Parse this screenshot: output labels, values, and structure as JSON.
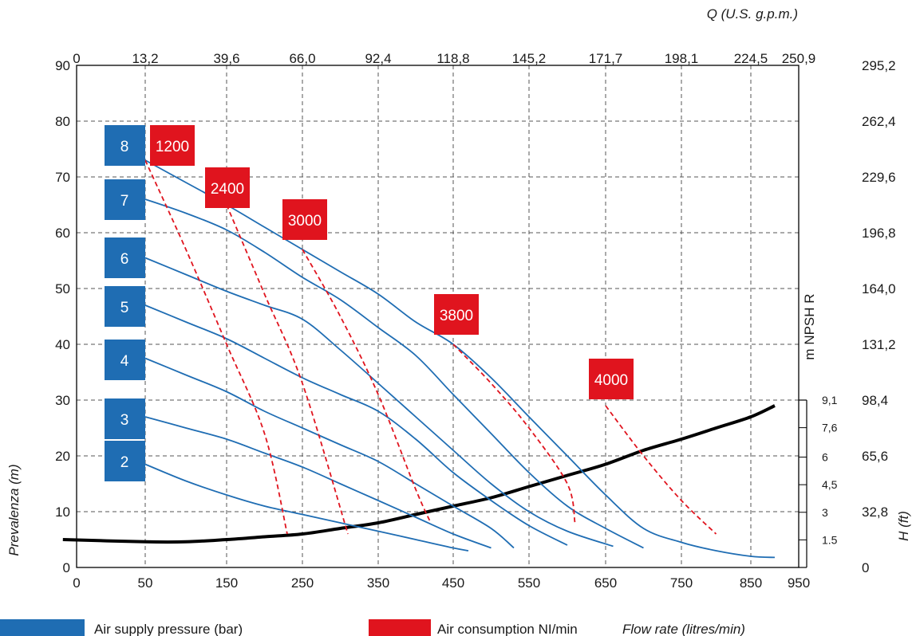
{
  "colors": {
    "pressure": "#1f6db3",
    "consumption": "#e0141e",
    "npsh": "#000000",
    "grid": "#555555"
  },
  "legend": {
    "pressure_label": "Air supply pressure (bar)",
    "consumption_label": "Air consumption NI/min",
    "flow_label": "Flow rate (litres/min)"
  },
  "chart_data": {
    "type": "line",
    "title": "",
    "x_axis": {
      "label": "Flow rate (litres/min)",
      "ticks": [
        "0",
        "50",
        "150",
        "250",
        "350",
        "450",
        "550",
        "650",
        "750",
        "850",
        "950"
      ]
    },
    "x_top_axis": {
      "label": "Q (U.S. g.p.m.)",
      "ticks": [
        "0",
        "13,2",
        "39,6",
        "66,0",
        "92,4",
        "118,8",
        "145,2",
        "171,7",
        "198,1",
        "224,5",
        "250,9"
      ]
    },
    "y_axis": {
      "label": "Prevalenza (m)",
      "range": [
        0,
        90
      ],
      "ticks": [
        "0",
        "10",
        "20",
        "30",
        "40",
        "50",
        "60",
        "70",
        "80",
        "90"
      ]
    },
    "y_right_ft": {
      "label": "H (ft)",
      "ticks": [
        "0",
        "32,8",
        "65,6",
        "98,4",
        "131,2",
        "164,0",
        "196,8",
        "229,6",
        "262,4",
        "295,2"
      ]
    },
    "y_npsh": {
      "label": "m NPSH R",
      "ticks": [
        "1.5",
        "3",
        "4,5",
        "6",
        "7,6",
        "9,1"
      ]
    },
    "grid": true,
    "pressure_series": [
      {
        "name": "8",
        "points": [
          [
            50,
            73
          ],
          [
            100,
            69
          ],
          [
            150,
            65
          ],
          [
            200,
            61
          ],
          [
            250,
            57
          ],
          [
            300,
            53
          ],
          [
            350,
            49
          ],
          [
            400,
            44
          ],
          [
            450,
            40
          ],
          [
            500,
            34
          ],
          [
            550,
            27
          ],
          [
            600,
            20
          ],
          [
            650,
            13
          ],
          [
            700,
            7
          ],
          [
            750,
            4.5
          ],
          [
            800,
            3
          ],
          [
            850,
            2
          ],
          [
            900,
            1.8
          ]
        ]
      },
      {
        "name": "7",
        "points": [
          [
            50,
            66
          ],
          [
            100,
            63.5
          ],
          [
            150,
            60.5
          ],
          [
            200,
            56.5
          ],
          [
            250,
            52
          ],
          [
            300,
            48
          ],
          [
            350,
            43
          ],
          [
            400,
            38
          ],
          [
            450,
            31
          ],
          [
            500,
            24
          ],
          [
            550,
            17
          ],
          [
            600,
            11
          ],
          [
            650,
            7
          ],
          [
            700,
            3.5
          ]
        ]
      },
      {
        "name": "6",
        "points": [
          [
            50,
            55.5
          ],
          [
            100,
            52.5
          ],
          [
            150,
            49.5
          ],
          [
            200,
            47
          ],
          [
            250,
            44.5
          ],
          [
            300,
            39
          ],
          [
            350,
            33
          ],
          [
            400,
            27
          ],
          [
            450,
            21
          ],
          [
            500,
            15
          ],
          [
            550,
            10
          ],
          [
            600,
            6.5
          ],
          [
            660,
            3.8
          ]
        ]
      },
      {
        "name": "5",
        "points": [
          [
            50,
            47
          ],
          [
            100,
            44
          ],
          [
            150,
            41
          ],
          [
            200,
            37.5
          ],
          [
            250,
            34
          ],
          [
            300,
            31
          ],
          [
            350,
            28
          ],
          [
            400,
            23
          ],
          [
            450,
            17
          ],
          [
            500,
            12
          ],
          [
            550,
            7.5
          ],
          [
            600,
            4
          ]
        ]
      },
      {
        "name": "4",
        "points": [
          [
            50,
            37.5
          ],
          [
            100,
            34.5
          ],
          [
            150,
            31.5
          ],
          [
            200,
            28
          ],
          [
            250,
            25
          ],
          [
            300,
            22
          ],
          [
            350,
            19
          ],
          [
            400,
            15
          ],
          [
            450,
            11
          ],
          [
            500,
            7
          ],
          [
            530,
            3.5
          ]
        ]
      },
      {
        "name": "3",
        "points": [
          [
            50,
            27
          ],
          [
            100,
            25
          ],
          [
            150,
            23
          ],
          [
            200,
            20.5
          ],
          [
            250,
            18
          ],
          [
            300,
            15
          ],
          [
            350,
            12
          ],
          [
            400,
            9
          ],
          [
            450,
            6
          ],
          [
            500,
            3.5
          ]
        ]
      },
      {
        "name": "2",
        "points": [
          [
            50,
            18.5
          ],
          [
            100,
            15.5
          ],
          [
            150,
            13
          ],
          [
            200,
            11
          ],
          [
            250,
            9.5
          ],
          [
            300,
            8
          ],
          [
            350,
            6.5
          ],
          [
            400,
            5
          ],
          [
            450,
            3.5
          ],
          [
            470,
            3
          ]
        ]
      }
    ],
    "consumption_series": [
      {
        "name": "1200",
        "points": [
          [
            50,
            73
          ],
          [
            100,
            57
          ],
          [
            150,
            40
          ],
          [
            200,
            24
          ],
          [
            230,
            6
          ]
        ]
      },
      {
        "name": "2400",
        "points": [
          [
            150,
            65
          ],
          [
            200,
            49
          ],
          [
            250,
            33
          ],
          [
            310,
            6
          ]
        ]
      },
      {
        "name": "3000",
        "points": [
          [
            250,
            57
          ],
          [
            300,
            45
          ],
          [
            350,
            31
          ],
          [
            400,
            14
          ],
          [
            420,
            8
          ]
        ]
      },
      {
        "name": "3800",
        "points": [
          [
            450,
            40
          ],
          [
            500,
            33
          ],
          [
            550,
            25
          ],
          [
            600,
            15
          ],
          [
            610,
            8
          ]
        ]
      },
      {
        "name": "4000",
        "points": [
          [
            650,
            29
          ],
          [
            700,
            20
          ],
          [
            750,
            12
          ],
          [
            800,
            6
          ]
        ]
      }
    ],
    "npsh_curve": [
      [
        -10,
        5
      ],
      [
        50,
        4.6
      ],
      [
        100,
        4.6
      ],
      [
        150,
        5
      ],
      [
        200,
        5.5
      ],
      [
        250,
        6
      ],
      [
        300,
        7
      ],
      [
        350,
        8
      ],
      [
        400,
        9.5
      ],
      [
        450,
        11
      ],
      [
        500,
        12.5
      ],
      [
        550,
        14.5
      ],
      [
        600,
        16.5
      ],
      [
        650,
        18.5
      ],
      [
        700,
        21
      ],
      [
        750,
        23
      ],
      [
        800,
        25
      ],
      [
        850,
        27
      ],
      [
        900,
        29
      ]
    ]
  }
}
